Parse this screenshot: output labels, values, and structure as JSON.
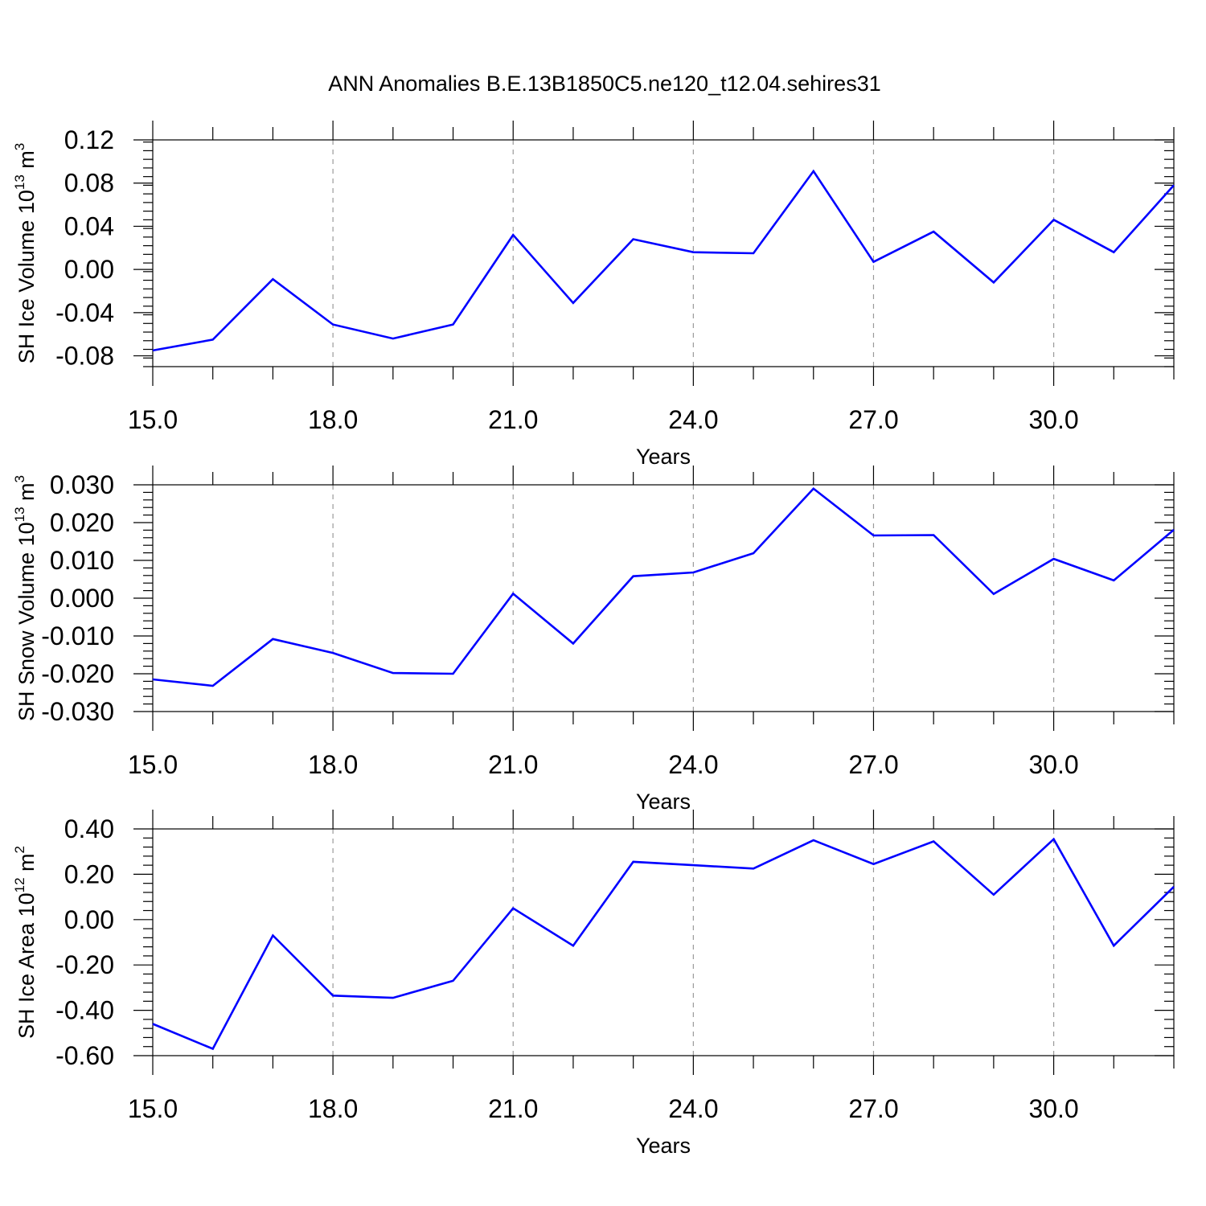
{
  "title": "ANN Anomalies B.E.13B1850C5.ne120_t12.04.sehires31",
  "colors": {
    "series": "#0000ff",
    "grid": "#999999",
    "axis": "#000000"
  },
  "chart_data": [
    {
      "type": "line",
      "ylabel": "SH Ice Volume",
      "ylabel_unit_base": "10",
      "ylabel_unit_exp": "13",
      "ylabel_unit_symbol": "m",
      "ylabel_unit_power": "3",
      "xlabel": "Years",
      "xlim": [
        15,
        32
      ],
      "ylim": [
        -0.09,
        0.12
      ],
      "x_ticks": [
        15,
        18,
        21,
        24,
        27,
        30
      ],
      "x_tick_labels": [
        "15.0",
        "18.0",
        "21.0",
        "24.0",
        "27.0",
        "30.0"
      ],
      "y_ticks": [
        -0.08,
        -0.04,
        0.0,
        0.04,
        0.08,
        0.12
      ],
      "y_tick_labels": [
        "-0.08",
        "-0.04",
        "0.00",
        "0.04",
        "0.08",
        "0.12"
      ],
      "y_minor_step": 0.008,
      "grid": "x-dashed",
      "x": [
        15,
        16,
        17,
        18,
        19,
        20,
        21,
        22,
        23,
        24,
        25,
        26,
        27,
        28,
        29,
        30,
        31,
        32
      ],
      "values": [
        -0.075,
        -0.065,
        -0.009,
        -0.051,
        -0.064,
        -0.051,
        0.032,
        -0.031,
        0.028,
        0.016,
        0.015,
        0.091,
        0.007,
        0.035,
        -0.012,
        0.046,
        0.016,
        0.078
      ]
    },
    {
      "type": "line",
      "ylabel": "SH Snow Volume",
      "ylabel_unit_base": "10",
      "ylabel_unit_exp": "13",
      "ylabel_unit_symbol": "m",
      "ylabel_unit_power": "3",
      "xlabel": "Years",
      "xlim": [
        15,
        32
      ],
      "ylim": [
        -0.03,
        0.03
      ],
      "x_ticks": [
        15,
        18,
        21,
        24,
        27,
        30
      ],
      "x_tick_labels": [
        "15.0",
        "18.0",
        "21.0",
        "24.0",
        "27.0",
        "30.0"
      ],
      "y_ticks": [
        -0.03,
        -0.02,
        -0.01,
        0.0,
        0.01,
        0.02,
        0.03
      ],
      "y_tick_labels": [
        "-0.030",
        "-0.020",
        "-0.010",
        "0.000",
        "0.010",
        "0.020",
        "0.030"
      ],
      "y_minor_step": 0.002,
      "grid": "x-dashed",
      "x": [
        15,
        16,
        17,
        18,
        19,
        20,
        21,
        22,
        23,
        24,
        25,
        26,
        27,
        28,
        29,
        30,
        31,
        32
      ],
      "values": [
        -0.0215,
        -0.0232,
        -0.0108,
        -0.0145,
        -0.0198,
        -0.02,
        0.0012,
        -0.012,
        0.0058,
        0.0068,
        0.0119,
        0.029,
        0.0166,
        0.0167,
        0.0011,
        0.0104,
        0.0047,
        0.0181
      ]
    },
    {
      "type": "line",
      "ylabel": "SH Ice Area",
      "ylabel_unit_base": "10",
      "ylabel_unit_exp": "12",
      "ylabel_unit_symbol": "m",
      "ylabel_unit_power": "2",
      "xlabel": "Years",
      "xlim": [
        15,
        32
      ],
      "ylim": [
        -0.6,
        0.4
      ],
      "x_ticks": [
        15,
        18,
        21,
        24,
        27,
        30
      ],
      "x_tick_labels": [
        "15.0",
        "18.0",
        "21.0",
        "24.0",
        "27.0",
        "30.0"
      ],
      "y_ticks": [
        -0.6,
        -0.4,
        -0.2,
        0.0,
        0.2,
        0.4
      ],
      "y_tick_labels": [
        "-0.60",
        "-0.40",
        "-0.20",
        "0.00",
        "0.20",
        "0.40"
      ],
      "y_minor_step": 0.04,
      "grid": "x-dashed",
      "x": [
        15,
        16,
        17,
        18,
        19,
        20,
        21,
        22,
        23,
        24,
        25,
        26,
        27,
        28,
        29,
        30,
        31,
        32
      ],
      "values": [
        -0.46,
        -0.57,
        -0.07,
        -0.335,
        -0.345,
        -0.27,
        0.05,
        -0.115,
        0.255,
        0.24,
        0.225,
        0.35,
        0.245,
        0.345,
        0.11,
        0.355,
        -0.115,
        0.145
      ]
    }
  ]
}
